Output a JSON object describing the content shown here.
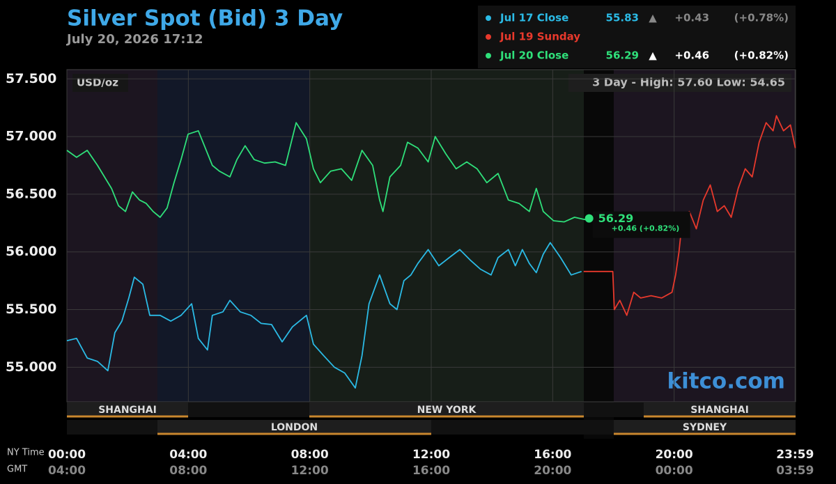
{
  "chart_data": {
    "type": "line",
    "title": "Silver Spot (Bid) 3 Day",
    "subtitle": "July 20, 2026 17:12",
    "unit_label": "USD/oz",
    "range_label": "3 Day - High: 57.60  Low: 54.65",
    "watermark": "kitco.com",
    "last_price_label": "56.29",
    "last_change_label": "+0.46 (+0.82%)",
    "x_axis_label": "NY Time",
    "x2_axis_label": "GMT",
    "xlim": [
      0,
      24
    ],
    "ylim": [
      54.7,
      57.58
    ],
    "xticks": [
      {
        "value": 0,
        "label": "00:00"
      },
      {
        "value": 4,
        "label": "04:00"
      },
      {
        "value": 8,
        "label": "08:00"
      },
      {
        "value": 12,
        "label": "12:00"
      },
      {
        "value": 16,
        "label": "16:00"
      },
      {
        "value": 20,
        "label": "20:00"
      },
      {
        "value": 23.983,
        "label": "23:59"
      }
    ],
    "x2_tick_labels": [
      "04:00",
      "08:00",
      "12:00",
      "16:00",
      "20:00",
      "00:00",
      "03:59"
    ],
    "yticks": [
      {
        "value": 55,
        "label": "55.000"
      },
      {
        "value": 55.5,
        "label": "55.500"
      },
      {
        "value": 56,
        "label": "56.000"
      },
      {
        "value": 56.5,
        "label": "56.500"
      },
      {
        "value": 57,
        "label": "57.000"
      },
      {
        "value": 57.5,
        "label": "57.500"
      }
    ],
    "grid": true,
    "sessions": [
      "SHANGHAI",
      "NEW YORK",
      "SHANGHAI",
      "LONDON",
      "SYDNEY"
    ],
    "series": [
      {
        "name": "Jul 17 Close",
        "color": "#2bbbe6",
        "close_label": "55.83",
        "arrow": "▲",
        "change_label": "+0.43",
        "pct_label": "(+0.78%)",
        "x": [
          0,
          0.32,
          0.67,
          1.01,
          1.35,
          1.58,
          1.81,
          2.04,
          2.22,
          2.5,
          2.73,
          3.07,
          3.42,
          3.76,
          4.11,
          4.33,
          4.63,
          4.79,
          5.14,
          5.37,
          5.71,
          6.06,
          6.4,
          6.74,
          7.09,
          7.43,
          7.89,
          8.12,
          8.46,
          8.81,
          9.15,
          9.5,
          9.72,
          9.95,
          10.3,
          10.64,
          10.87,
          11.1,
          11.33,
          11.56,
          11.9,
          12.25,
          12.59,
          12.94,
          13.28,
          13.62,
          13.97,
          14.2,
          14.54,
          14.77,
          15.0,
          15.23,
          15.46,
          15.69,
          15.92,
          16.26,
          16.61,
          16.95
        ],
        "values": [
          55.23,
          55.25,
          55.08,
          55.05,
          54.97,
          55.3,
          55.4,
          55.6,
          55.78,
          55.72,
          55.45,
          55.45,
          55.4,
          55.45,
          55.55,
          55.25,
          55.15,
          55.45,
          55.48,
          55.58,
          55.48,
          55.45,
          55.38,
          55.37,
          55.22,
          55.35,
          55.45,
          55.2,
          55.1,
          55.0,
          54.95,
          54.82,
          55.1,
          55.55,
          55.8,
          55.55,
          55.5,
          55.75,
          55.8,
          55.9,
          56.02,
          55.88,
          55.95,
          56.02,
          55.93,
          55.85,
          55.8,
          55.95,
          56.02,
          55.88,
          56.02,
          55.9,
          55.82,
          55.98,
          56.08,
          55.95,
          55.8,
          55.83
        ]
      },
      {
        "name": "Jul 19 Sunday",
        "color": "#e8392c",
        "x": [
          17.02,
          17.98,
          18.03,
          18.21,
          18.44,
          18.67,
          18.9,
          19.24,
          19.59,
          19.93,
          20.05,
          20.16,
          20.28,
          20.5,
          20.73,
          20.96,
          21.19,
          21.42,
          21.65,
          21.88,
          22.11,
          22.34,
          22.57,
          22.8,
          23.03,
          23.26,
          23.37,
          23.6,
          23.83,
          23.99
        ],
        "values": [
          55.83,
          55.83,
          55.5,
          55.58,
          55.45,
          55.65,
          55.6,
          55.62,
          55.6,
          55.65,
          55.8,
          56.0,
          56.3,
          56.35,
          56.2,
          56.45,
          56.58,
          56.35,
          56.4,
          56.3,
          56.55,
          56.72,
          56.65,
          56.95,
          57.12,
          57.05,
          57.18,
          57.05,
          57.1,
          56.9
        ]
      },
      {
        "name": "Jul 20 Close",
        "color": "#2fe07a",
        "close_label": "56.29",
        "arrow": "▲",
        "change_label": "+0.46",
        "pct_label": "(+0.82%)",
        "x": [
          0,
          0.32,
          0.67,
          1.01,
          1.24,
          1.47,
          1.7,
          1.93,
          2.16,
          2.39,
          2.61,
          2.84,
          3.07,
          3.3,
          3.53,
          3.76,
          3.99,
          4.33,
          4.56,
          4.79,
          5.02,
          5.37,
          5.6,
          5.87,
          6.17,
          6.51,
          6.86,
          7.2,
          7.55,
          7.89,
          8.12,
          8.35,
          8.69,
          9.04,
          9.38,
          9.72,
          10.07,
          10.3,
          10.41,
          10.64,
          10.99,
          11.22,
          11.56,
          11.9,
          12.13,
          12.48,
          12.82,
          13.17,
          13.51,
          13.83,
          14.2,
          14.54,
          14.89,
          15.23,
          15.46,
          15.69,
          16.03,
          16.38,
          16.72,
          17.06,
          17.2
        ],
        "values": [
          56.88,
          56.82,
          56.88,
          56.75,
          56.65,
          56.55,
          56.4,
          56.35,
          56.52,
          56.45,
          56.42,
          56.35,
          56.3,
          56.38,
          56.6,
          56.8,
          57.02,
          57.05,
          56.9,
          56.75,
          56.7,
          56.65,
          56.8,
          56.92,
          56.8,
          56.77,
          56.78,
          56.75,
          57.12,
          56.98,
          56.72,
          56.6,
          56.7,
          56.72,
          56.62,
          56.88,
          56.75,
          56.45,
          56.35,
          56.65,
          56.75,
          56.95,
          56.9,
          56.78,
          57.0,
          56.85,
          56.72,
          56.78,
          56.72,
          56.6,
          56.68,
          56.45,
          56.42,
          56.35,
          56.55,
          56.35,
          56.27,
          56.26,
          56.3,
          56.28,
          56.29
        ]
      }
    ]
  }
}
